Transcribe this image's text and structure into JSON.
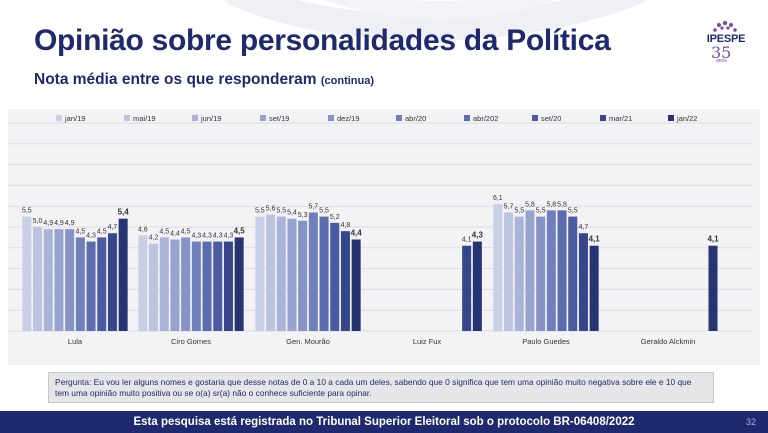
{
  "header": {
    "title": "Opinião sobre personalidades da Política",
    "subtitle": "Nota média entre os que responderam",
    "subtitle_note": "(continua)"
  },
  "logo": {
    "name": "IPESPE",
    "years": "35",
    "years_label": "anos"
  },
  "chart_data": {
    "type": "bar",
    "categories": [
      "Lula",
      "Ciro Gomes",
      "Gen. Mourão",
      "Luiz Fux",
      "Paulo Guedes",
      "Geraldo Alckmin"
    ],
    "series": [
      {
        "name": "jan/19",
        "color": "#c9d0e6",
        "values": [
          5.5,
          4.6,
          5.5,
          null,
          6.1,
          null
        ],
        "labels": [
          "5,5",
          "4,6",
          "5,5",
          "",
          "6,1",
          ""
        ]
      },
      {
        "name": "mai/19",
        "color": "#bcc4e0",
        "values": [
          5.0,
          4.2,
          5.6,
          null,
          5.7,
          null
        ],
        "labels": [
          "5,0",
          "4,2",
          "5,6",
          "",
          "5,7",
          ""
        ]
      },
      {
        "name": "jun/19",
        "color": "#aab4d8",
        "values": [
          4.9,
          4.5,
          5.5,
          null,
          5.5,
          null
        ],
        "labels": [
          "4,9",
          "4,5",
          "5,5",
          "",
          "5,5",
          ""
        ]
      },
      {
        "name": "set/19",
        "color": "#98a4d0",
        "values": [
          4.9,
          4.4,
          5.4,
          null,
          5.8,
          null
        ],
        "labels": [
          "4,9",
          "4,4",
          "5,4",
          "",
          "5,8",
          ""
        ]
      },
      {
        "name": "dez/19",
        "color": "#8593c6",
        "values": [
          4.9,
          4.5,
          5.3,
          null,
          5.5,
          null
        ],
        "labels": [
          "4,9",
          "4,5",
          "5,3",
          "",
          "5,5",
          ""
        ]
      },
      {
        "name": "abr/20",
        "color": "#6f80bb",
        "values": [
          4.5,
          4.3,
          5.7,
          null,
          5.8,
          null
        ],
        "labels": [
          "4,5",
          "4,3",
          "5,7",
          "",
          "5,8",
          ""
        ]
      },
      {
        "name": "abr/202",
        "color": "#5b6daf",
        "values": [
          4.3,
          4.3,
          5.5,
          null,
          5.8,
          null
        ],
        "labels": [
          "4,3",
          "4,3",
          "5,5",
          "",
          "5,8",
          ""
        ]
      },
      {
        "name": "set/20",
        "color": "#4a5ba2",
        "values": [
          4.5,
          4.3,
          5.2,
          null,
          5.5,
          null
        ],
        "labels": [
          "4,5",
          "4,3",
          "5,2",
          "",
          "5,5",
          ""
        ]
      },
      {
        "name": "mar/21",
        "color": "#36468a",
        "values": [
          4.7,
          4.3,
          4.8,
          4.1,
          4.7,
          null
        ],
        "labels": [
          "4,7",
          "4,3",
          "4,8",
          "4,1",
          "4,7",
          ""
        ]
      },
      {
        "name": "jan/22",
        "color": "#263472",
        "values": [
          5.4,
          4.5,
          4.4,
          4.3,
          4.1,
          4.1
        ],
        "labels": [
          "5,4",
          "4,5",
          "4,4",
          "4,3",
          "4,1",
          "4,1"
        ]
      }
    ],
    "ylim": [
      0,
      10
    ],
    "grid": true,
    "legend": "top",
    "bold_last_series": true
  },
  "question": "Pergunta: Eu vou ler alguns nomes e gostaria que desse notas de 0 a 10 a cada um deles, sabendo que 0 significa que tem uma opinião muito negativa sobre ele e 10 que tem uma opinião muito positiva ou se o(a) sr(a) não o conhece suficiente para opinar.",
  "footer": {
    "text": "Esta pesquisa está registrada no Tribunal Superior Eleitoral sob o protocolo BR-06408/2022",
    "page_number": "32"
  }
}
